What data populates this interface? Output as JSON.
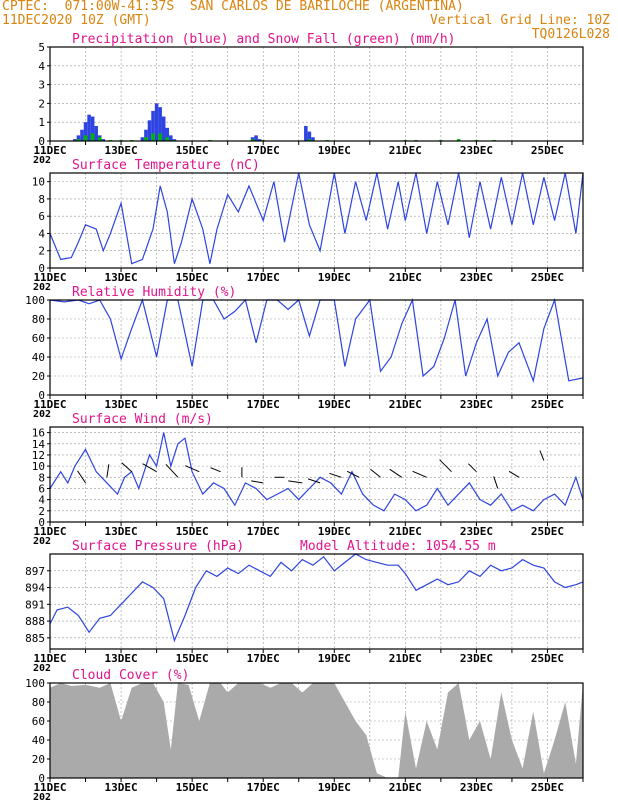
{
  "header": {
    "left_line1": "CPTEC:  071:00W-41:37S  SAN CARLOS DE BARILOCHE (ARGENTINA)",
    "left_line2": "11DEC2020 10Z (GMT)",
    "right_line2": "Vertical Grid Line: 10Z",
    "right_line3": "TQ0126L028"
  },
  "colors": {
    "header": "#d9840f",
    "title": "#e0148c",
    "line": "#2e44e0",
    "snow": "#00b400",
    "cloud": "#aaaaaa",
    "grid": "#9a9a9a"
  },
  "x_ticks": [
    "11DEC",
    "13DEC",
    "15DEC",
    "17DEC",
    "19DEC",
    "21DEC",
    "23DEC",
    "25DEC"
  ],
  "year_fragment": "202",
  "chart_data": [
    {
      "id": "precip",
      "type": "bar",
      "title": "Precipitation (blue) and Snow Fall (green) (mm/h)",
      "ylim": [
        0,
        5
      ],
      "yticks": [
        0,
        1,
        2,
        3,
        4,
        5
      ],
      "series": [
        {
          "name": "Precipitation",
          "color": "#2e44e0",
          "x": [
            0.7,
            0.8,
            0.9,
            1.0,
            1.1,
            1.2,
            1.3,
            1.4,
            1.5,
            2.6,
            2.7,
            2.8,
            2.9,
            3.0,
            3.1,
            3.2,
            3.3,
            3.4,
            3.5,
            5.7,
            5.8,
            5.9,
            7.2,
            7.3,
            7.4
          ],
          "values": [
            0.1,
            0.3,
            0.6,
            1.0,
            1.4,
            1.3,
            0.8,
            0.3,
            0.1,
            0.2,
            0.6,
            1.1,
            1.6,
            2.0,
            1.8,
            1.3,
            0.7,
            0.3,
            0.1,
            0.2,
            0.3,
            0.1,
            0.8,
            0.5,
            0.2
          ]
        },
        {
          "name": "Snow Fall",
          "color": "#00b400",
          "x": [
            0.8,
            1.0,
            1.2,
            1.4,
            1.7,
            2.0,
            2.3,
            2.7,
            2.9,
            3.1,
            3.3,
            3.5,
            4.5,
            5.7,
            6.0,
            7.3,
            7.8,
            10.0,
            10.3,
            11.0,
            11.5,
            12.0,
            12.5
          ],
          "values": [
            0.1,
            0.3,
            0.4,
            0.2,
            0.05,
            0.05,
            0.05,
            0.2,
            0.4,
            0.4,
            0.2,
            0.05,
            0.05,
            0.1,
            0.05,
            0.1,
            0.05,
            0.05,
            0.05,
            0.05,
            0.1,
            0.05,
            0.05
          ]
        }
      ]
    },
    {
      "id": "temp",
      "type": "line",
      "title": "Surface Temperature (nC)",
      "ylim": [
        0,
        11
      ],
      "yticks": [
        0,
        2,
        4,
        6,
        8,
        10
      ],
      "x": [
        0,
        0.3,
        0.6,
        0.8,
        1.0,
        1.3,
        1.5,
        1.7,
        2.0,
        2.3,
        2.6,
        2.9,
        3.1,
        3.3,
        3.5,
        3.7,
        4.0,
        4.3,
        4.5,
        4.7,
        5.0,
        5.3,
        5.6,
        6.0,
        6.3,
        6.6,
        7.0,
        7.3,
        7.6,
        8.0,
        8.3,
        8.6,
        8.9,
        9.2,
        9.5,
        9.8,
        10.0,
        10.3,
        10.6,
        10.9,
        11.2,
        11.5,
        11.8,
        12.1,
        12.4,
        12.7,
        13.0,
        13.3,
        13.6,
        13.9,
        14.2,
        14.5,
        14.8,
        15.0
      ],
      "values": [
        4.0,
        1.0,
        1.2,
        3.0,
        5.0,
        4.5,
        2.0,
        4.0,
        7.5,
        0.5,
        1.0,
        4.5,
        9.5,
        6.5,
        0.5,
        3.0,
        8.0,
        4.5,
        0.5,
        4.5,
        8.5,
        6.5,
        9.5,
        5.5,
        10.0,
        3.0,
        11.0,
        5.0,
        2.0,
        11.0,
        4.0,
        10.0,
        5.5,
        11.0,
        4.5,
        10.0,
        5.5,
        11.0,
        4.0,
        10.0,
        5.0,
        11.0,
        3.5,
        10.0,
        4.5,
        10.5,
        5.0,
        11.0,
        5.0,
        10.5,
        5.5,
        11.0,
        4.0,
        11.0
      ]
    },
    {
      "id": "rh",
      "type": "line",
      "title": "Relative Humidity (%)",
      "ylim": [
        0,
        100
      ],
      "yticks": [
        0,
        20,
        40,
        60,
        80,
        100
      ],
      "x": [
        0,
        0.4,
        0.8,
        1.1,
        1.4,
        1.7,
        2.0,
        2.3,
        2.6,
        3.0,
        3.3,
        3.6,
        4.0,
        4.3,
        4.6,
        4.9,
        5.2,
        5.5,
        5.8,
        6.1,
        6.4,
        6.7,
        7.0,
        7.3,
        7.6,
        8.0,
        8.3,
        8.6,
        9.0,
        9.3,
        9.6,
        9.9,
        10.2,
        10.5,
        10.8,
        11.1,
        11.4,
        11.7,
        12.0,
        12.3,
        12.6,
        12.9,
        13.2,
        13.6,
        13.9,
        14.2,
        14.6,
        15.0
      ],
      "values": [
        100,
        98,
        100,
        96,
        100,
        80,
        38,
        70,
        100,
        40,
        100,
        100,
        30,
        100,
        100,
        80,
        88,
        100,
        55,
        100,
        100,
        90,
        100,
        62,
        100,
        100,
        30,
        80,
        100,
        25,
        40,
        75,
        100,
        20,
        30,
        60,
        100,
        20,
        55,
        80,
        20,
        45,
        55,
        15,
        70,
        100,
        15,
        18
      ]
    },
    {
      "id": "wind",
      "type": "line",
      "title": "Surface Wind (m/s)",
      "ylim": [
        0,
        17
      ],
      "yticks": [
        0,
        2,
        4,
        6,
        8,
        10,
        12,
        14,
        16
      ],
      "x": [
        0,
        0.3,
        0.5,
        0.7,
        1.0,
        1.3,
        1.6,
        1.9,
        2.1,
        2.3,
        2.5,
        2.8,
        3.0,
        3.2,
        3.4,
        3.6,
        3.8,
        4.0,
        4.3,
        4.6,
        4.9,
        5.2,
        5.5,
        5.8,
        6.1,
        6.4,
        6.7,
        7.0,
        7.3,
        7.6,
        7.9,
        8.2,
        8.5,
        8.8,
        9.1,
        9.4,
        9.7,
        10.0,
        10.3,
        10.6,
        10.9,
        11.2,
        11.5,
        11.8,
        12.1,
        12.4,
        12.7,
        13.0,
        13.3,
        13.6,
        13.9,
        14.2,
        14.5,
        14.8,
        15.0
      ],
      "values": [
        6,
        9,
        7,
        10,
        13,
        9,
        7,
        5,
        8,
        9,
        6,
        12,
        10,
        16,
        10,
        14,
        15,
        9,
        5,
        7,
        6,
        3,
        7,
        6,
        4,
        5,
        6,
        4,
        6,
        8,
        7,
        5,
        9,
        5,
        3,
        2,
        5,
        4,
        2,
        3,
        6,
        3,
        5,
        7,
        4,
        3,
        5,
        2,
        3,
        2,
        4,
        5,
        3,
        8,
        4
      ]
    },
    {
      "id": "pressure",
      "type": "line",
      "title": "Surface Pressure (hPa)",
      "subtitle": "Model Altitude: 1054.55  m",
      "ylim": [
        883,
        900
      ],
      "yticks": [
        885,
        888,
        891,
        894,
        897
      ],
      "x": [
        0,
        0.2,
        0.5,
        0.8,
        1.1,
        1.4,
        1.7,
        2.0,
        2.3,
        2.6,
        2.9,
        3.2,
        3.5,
        3.8,
        4.1,
        4.4,
        4.7,
        5.0,
        5.3,
        5.6,
        5.9,
        6.2,
        6.5,
        6.8,
        7.1,
        7.4,
        7.7,
        8.0,
        8.3,
        8.6,
        8.9,
        9.2,
        9.5,
        9.8,
        10.0,
        10.3,
        10.6,
        10.9,
        11.2,
        11.5,
        11.8,
        12.1,
        12.4,
        12.7,
        13.0,
        13.3,
        13.6,
        13.9,
        14.2,
        14.5,
        14.8,
        15.0
      ],
      "values": [
        887.5,
        890,
        890.5,
        889,
        886,
        888.5,
        889,
        891,
        893,
        895,
        894,
        892,
        884.5,
        889,
        894,
        897,
        896,
        897.5,
        896.5,
        898,
        897,
        896,
        898.5,
        897,
        899,
        898,
        899.5,
        897,
        898.5,
        900,
        899,
        898.5,
        898,
        898,
        896.5,
        893.5,
        894.5,
        895.5,
        894.5,
        895,
        897,
        896,
        898,
        897,
        897.5,
        899,
        898,
        897.5,
        895,
        894,
        894.5,
        895
      ]
    },
    {
      "id": "cloud",
      "type": "area",
      "title": "Cloud Cover (%)",
      "ylim": [
        0,
        100
      ],
      "yticks": [
        0,
        20,
        40,
        60,
        80,
        100
      ],
      "x": [
        0,
        0.3,
        0.6,
        1.0,
        1.4,
        1.7,
        2.0,
        2.3,
        2.6,
        2.9,
        3.2,
        3.4,
        3.6,
        3.9,
        4.2,
        4.5,
        4.8,
        5.0,
        5.3,
        5.6,
        5.9,
        6.2,
        6.5,
        6.8,
        7.1,
        7.4,
        7.7,
        8.0,
        8.3,
        8.6,
        8.9,
        9.2,
        9.5,
        9.8,
        10.0,
        10.3,
        10.6,
        10.9,
        11.2,
        11.5,
        11.8,
        12.1,
        12.4,
        12.7,
        13.0,
        13.3,
        13.6,
        13.9,
        14.2,
        14.5,
        14.8,
        15.0
      ],
      "values": [
        95,
        100,
        97,
        98,
        95,
        100,
        60,
        95,
        100,
        100,
        80,
        30,
        100,
        98,
        60,
        100,
        100,
        90,
        100,
        100,
        100,
        95,
        100,
        100,
        90,
        100,
        100,
        100,
        80,
        60,
        45,
        5,
        0,
        0,
        70,
        10,
        60,
        30,
        90,
        100,
        40,
        60,
        20,
        90,
        40,
        10,
        70,
        5,
        40,
        80,
        15,
        100
      ]
    }
  ]
}
